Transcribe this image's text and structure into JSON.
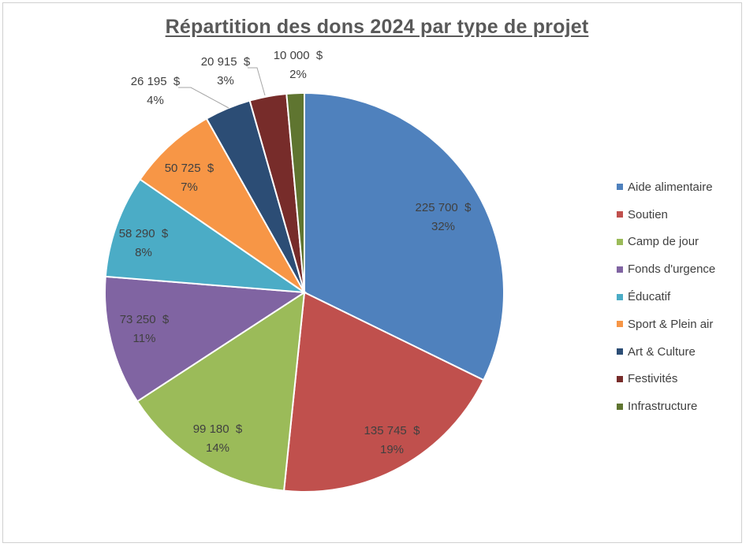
{
  "chart_data": {
    "type": "pie",
    "title": "Répartition des dons 2024 par type de projet",
    "legend_position": "right",
    "slices": [
      {
        "name": "Aide alimentaire",
        "value": 225700,
        "value_label": "225 700  $",
        "percent_label": "32%",
        "color": "#4F81BD"
      },
      {
        "name": "Soutien",
        "value": 135745,
        "value_label": "135 745  $",
        "percent_label": "19%",
        "color": "#C0504D"
      },
      {
        "name": "Camp de jour",
        "value": 99180,
        "value_label": "99 180  $",
        "percent_label": "14%",
        "color": "#9BBB59"
      },
      {
        "name": "Fonds d'urgence",
        "value": 73250,
        "value_label": "73 250  $",
        "percent_label": "11%",
        "color": "#8064A2"
      },
      {
        "name": "Éducatif",
        "value": 58290,
        "value_label": "58 290  $",
        "percent_label": "8%",
        "color": "#4BACC6"
      },
      {
        "name": "Sport & Plein air",
        "value": 50725,
        "value_label": "50 725  $",
        "percent_label": "7%",
        "color": "#F79646"
      },
      {
        "name": "Art & Culture",
        "value": 26195,
        "value_label": "26 195  $",
        "percent_label": "4%",
        "color": "#2C4D75"
      },
      {
        "name": "Festivités",
        "value": 20915,
        "value_label": "20 915  $",
        "percent_label": "3%",
        "color": "#772C2A"
      },
      {
        "name": "Infrastructure",
        "value": 10000,
        "value_label": "10 000  $",
        "percent_label": "2%",
        "color": "#5F7530"
      }
    ]
  }
}
